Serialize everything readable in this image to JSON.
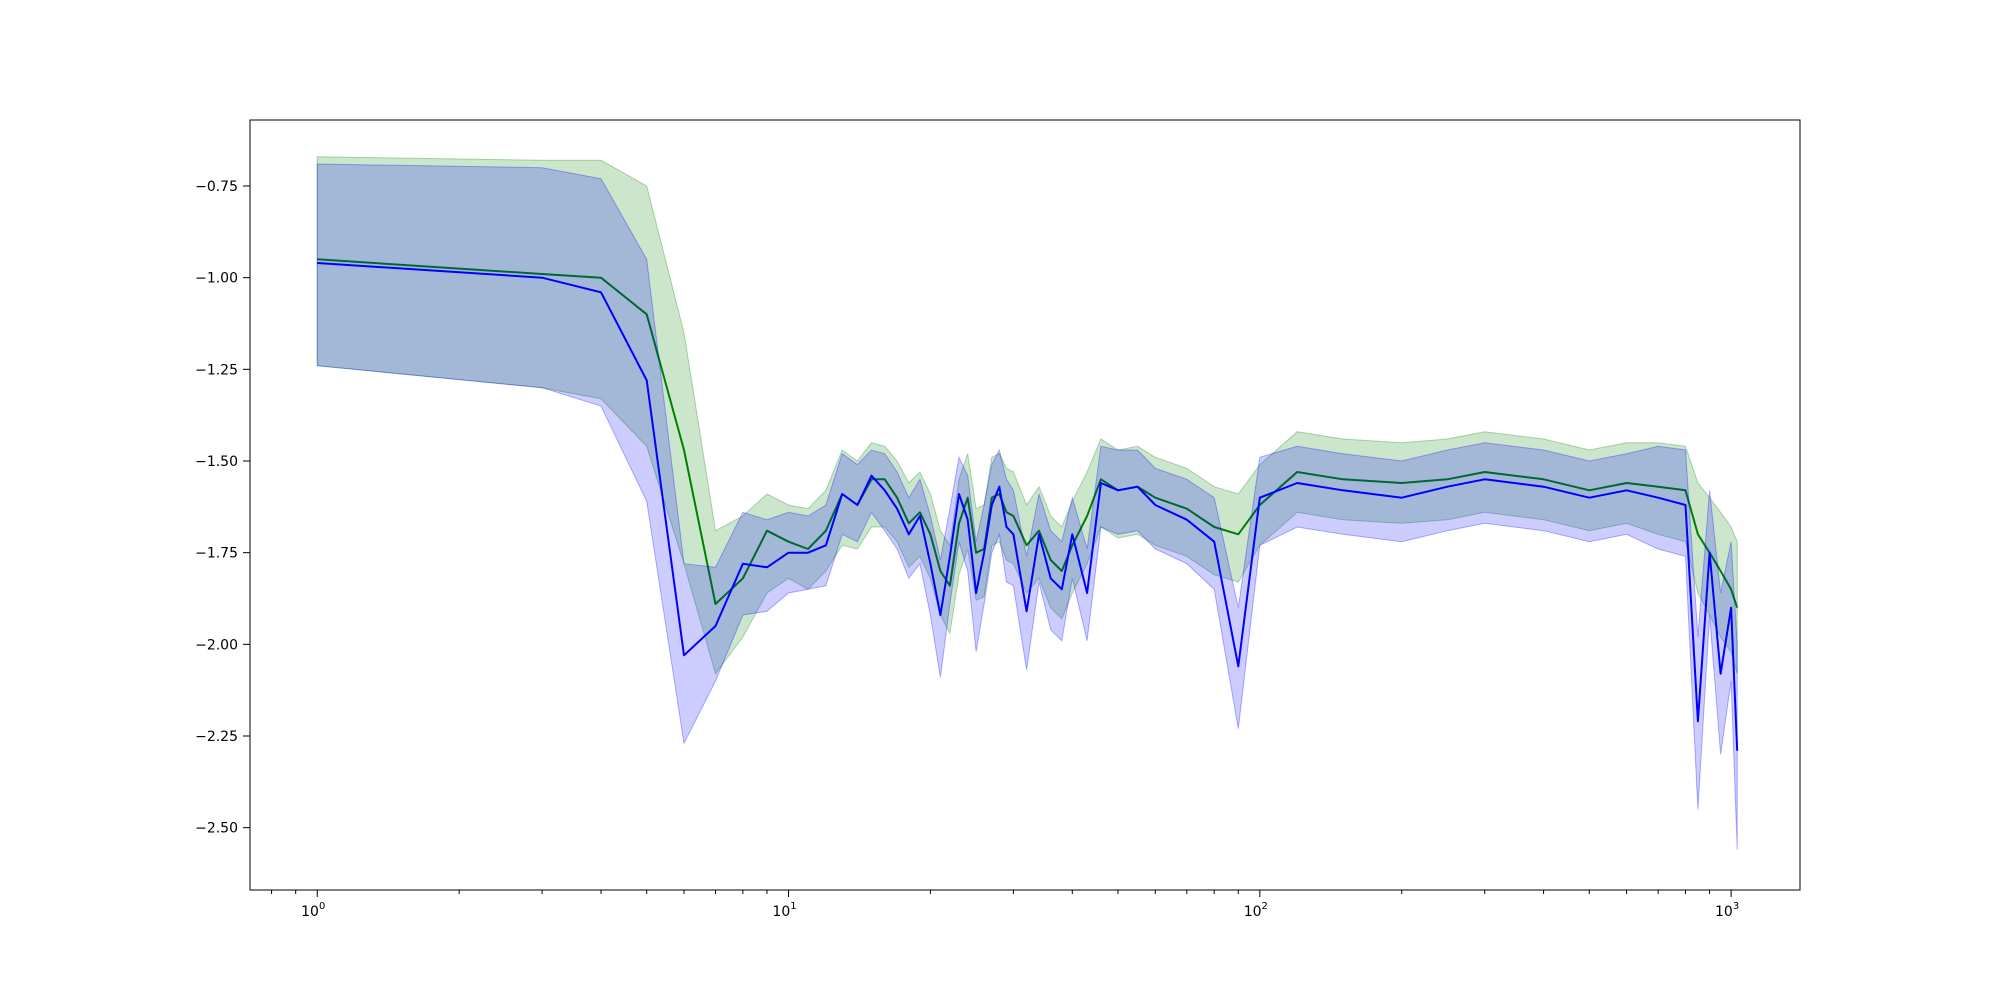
{
  "chart_data": {
    "type": "line",
    "title": "",
    "xlabel": "",
    "ylabel": "",
    "x_scale": "log",
    "xlim": [
      0.72,
      1400
    ],
    "ylim": [
      -2.67,
      -0.57
    ],
    "grid": false,
    "x_ticks": [
      {
        "value": 1,
        "base": "10",
        "exp": "0"
      },
      {
        "value": 10,
        "base": "10",
        "exp": "1"
      },
      {
        "value": 100,
        "base": "10",
        "exp": "2"
      },
      {
        "value": 1000,
        "base": "10",
        "exp": "3"
      }
    ],
    "y_ticks": [
      {
        "value": -0.75,
        "label": "−0.75"
      },
      {
        "value": -1.0,
        "label": "−1.00"
      },
      {
        "value": -1.25,
        "label": "−1.25"
      },
      {
        "value": -1.5,
        "label": "−1.50"
      },
      {
        "value": -1.75,
        "label": "−1.75"
      },
      {
        "value": -2.0,
        "label": "−2.00"
      },
      {
        "value": -2.25,
        "label": "−2.25"
      },
      {
        "value": -2.5,
        "label": "−2.50"
      }
    ],
    "series": [
      {
        "color": "#008000",
        "band_color": "#008000",
        "band_opacity": 0.2,
        "x": [
          1,
          3,
          4,
          5,
          6,
          7,
          8,
          9,
          10,
          11,
          12,
          13,
          14,
          15,
          16,
          17,
          18,
          19,
          20,
          21,
          22,
          23,
          24,
          25,
          26,
          27,
          28,
          29,
          30,
          32,
          34,
          36,
          38,
          40,
          43,
          46,
          50,
          55,
          60,
          70,
          80,
          90,
          100,
          120,
          150,
          200,
          250,
          300,
          400,
          500,
          600,
          700,
          800,
          850,
          900,
          950,
          1000,
          1030
        ],
        "y": [
          -0.95,
          -0.99,
          -1.0,
          -1.1,
          -1.47,
          -1.89,
          -1.82,
          -1.69,
          -1.72,
          -1.74,
          -1.69,
          -1.59,
          -1.62,
          -1.55,
          -1.55,
          -1.6,
          -1.67,
          -1.64,
          -1.7,
          -1.8,
          -1.84,
          -1.67,
          -1.6,
          -1.75,
          -1.74,
          -1.6,
          -1.59,
          -1.64,
          -1.65,
          -1.73,
          -1.69,
          -1.77,
          -1.8,
          -1.73,
          -1.65,
          -1.55,
          -1.58,
          -1.57,
          -1.6,
          -1.63,
          -1.68,
          -1.7,
          -1.62,
          -1.53,
          -1.55,
          -1.56,
          -1.55,
          -1.53,
          -1.55,
          -1.58,
          -1.56,
          -1.57,
          -1.58,
          -1.7,
          -1.75,
          -1.8,
          -1.85,
          -1.9
        ],
        "lower": [
          -1.24,
          -1.3,
          -1.33,
          -1.46,
          -1.78,
          -2.08,
          -1.98,
          -1.86,
          -1.82,
          -1.85,
          -1.8,
          -1.73,
          -1.74,
          -1.68,
          -1.68,
          -1.72,
          -1.79,
          -1.76,
          -1.82,
          -1.92,
          -1.97,
          -1.81,
          -1.74,
          -1.88,
          -1.87,
          -1.73,
          -1.72,
          -1.77,
          -1.78,
          -1.86,
          -1.82,
          -1.9,
          -1.93,
          -1.86,
          -1.78,
          -1.68,
          -1.71,
          -1.7,
          -1.73,
          -1.76,
          -1.81,
          -1.83,
          -1.73,
          -1.64,
          -1.66,
          -1.67,
          -1.66,
          -1.64,
          -1.66,
          -1.69,
          -1.67,
          -1.7,
          -1.72,
          -1.86,
          -1.92,
          -1.98,
          -2.02,
          -2.08
        ],
        "upper": [
          -0.67,
          -0.68,
          -0.68,
          -0.75,
          -1.15,
          -1.69,
          -1.65,
          -1.59,
          -1.62,
          -1.63,
          -1.58,
          -1.47,
          -1.5,
          -1.45,
          -1.46,
          -1.5,
          -1.56,
          -1.53,
          -1.59,
          -1.69,
          -1.73,
          -1.55,
          -1.48,
          -1.63,
          -1.62,
          -1.49,
          -1.48,
          -1.52,
          -1.53,
          -1.62,
          -1.57,
          -1.65,
          -1.68,
          -1.61,
          -1.53,
          -1.44,
          -1.47,
          -1.46,
          -1.49,
          -1.52,
          -1.57,
          -1.59,
          -1.51,
          -1.42,
          -1.44,
          -1.45,
          -1.44,
          -1.42,
          -1.44,
          -1.47,
          -1.45,
          -1.45,
          -1.46,
          -1.56,
          -1.6,
          -1.64,
          -1.68,
          -1.72
        ]
      },
      {
        "color": "#0000ff",
        "band_color": "#0000ff",
        "band_opacity": 0.2,
        "x": [
          1,
          3,
          4,
          5,
          6,
          7,
          8,
          9,
          10,
          11,
          12,
          13,
          14,
          15,
          16,
          17,
          18,
          19,
          20,
          21,
          22,
          23,
          24,
          25,
          26,
          27,
          28,
          29,
          30,
          32,
          34,
          36,
          38,
          40,
          43,
          46,
          50,
          55,
          60,
          70,
          80,
          90,
          100,
          120,
          150,
          200,
          250,
          300,
          400,
          500,
          600,
          700,
          800,
          850,
          900,
          950,
          1000,
          1030
        ],
        "y": [
          -0.96,
          -1.0,
          -1.04,
          -1.28,
          -2.03,
          -1.95,
          -1.78,
          -1.79,
          -1.75,
          -1.75,
          -1.73,
          -1.59,
          -1.62,
          -1.54,
          -1.58,
          -1.63,
          -1.7,
          -1.65,
          -1.78,
          -1.92,
          -1.76,
          -1.59,
          -1.66,
          -1.86,
          -1.75,
          -1.62,
          -1.57,
          -1.68,
          -1.7,
          -1.91,
          -1.7,
          -1.82,
          -1.85,
          -1.7,
          -1.86,
          -1.56,
          -1.58,
          -1.57,
          -1.62,
          -1.66,
          -1.72,
          -2.06,
          -1.6,
          -1.56,
          -1.58,
          -1.6,
          -1.57,
          -1.55,
          -1.57,
          -1.6,
          -1.58,
          -1.6,
          -1.62,
          -2.21,
          -1.75,
          -2.08,
          -1.9,
          -2.29
        ],
        "lower": [
          -1.24,
          -1.3,
          -1.35,
          -1.61,
          -2.27,
          -2.1,
          -1.92,
          -1.91,
          -1.86,
          -1.85,
          -1.84,
          -1.7,
          -1.72,
          -1.64,
          -1.69,
          -1.74,
          -1.82,
          -1.78,
          -1.92,
          -2.09,
          -1.89,
          -1.72,
          -1.8,
          -2.02,
          -1.89,
          -1.75,
          -1.7,
          -1.83,
          -1.84,
          -2.07,
          -1.83,
          -1.96,
          -1.99,
          -1.82,
          -1.99,
          -1.68,
          -1.7,
          -1.69,
          -1.74,
          -1.78,
          -1.85,
          -2.23,
          -1.73,
          -1.68,
          -1.7,
          -1.72,
          -1.69,
          -1.67,
          -1.69,
          -1.72,
          -1.7,
          -1.74,
          -1.76,
          -2.45,
          -1.92,
          -2.3,
          -2.1,
          -2.56
        ],
        "upper": [
          -0.69,
          -0.7,
          -0.73,
          -0.95,
          -1.78,
          -1.79,
          -1.64,
          -1.66,
          -1.64,
          -1.65,
          -1.62,
          -1.48,
          -1.51,
          -1.47,
          -1.48,
          -1.53,
          -1.6,
          -1.55,
          -1.65,
          -1.77,
          -1.63,
          -1.49,
          -1.54,
          -1.72,
          -1.62,
          -1.51,
          -1.47,
          -1.55,
          -1.58,
          -1.76,
          -1.59,
          -1.69,
          -1.72,
          -1.6,
          -1.74,
          -1.46,
          -1.47,
          -1.47,
          -1.52,
          -1.55,
          -1.6,
          -1.9,
          -1.49,
          -1.46,
          -1.48,
          -1.5,
          -1.47,
          -1.45,
          -1.47,
          -1.5,
          -1.48,
          -1.46,
          -1.47,
          -1.98,
          -1.58,
          -1.86,
          -1.72,
          -2.0
        ]
      }
    ]
  }
}
